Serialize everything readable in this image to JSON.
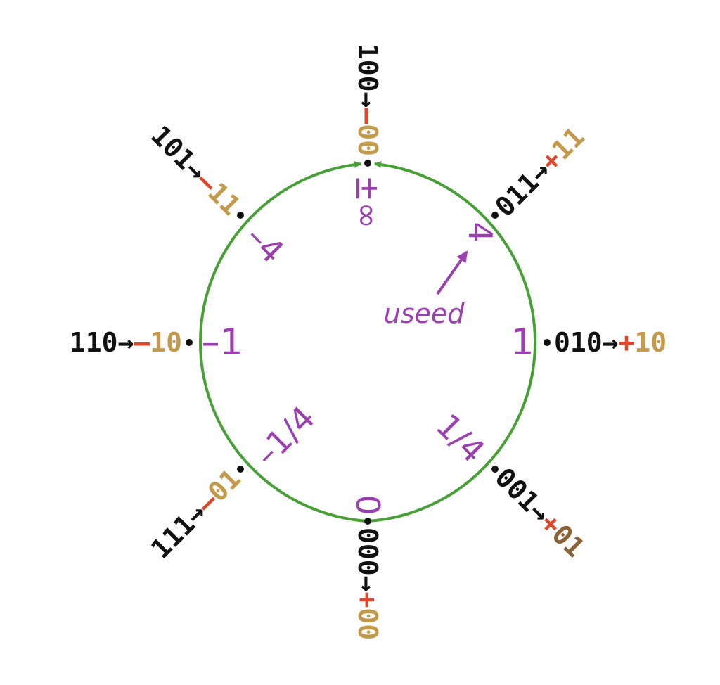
{
  "colors": {
    "ring": "#46a035",
    "bits": "#111111",
    "sign": "#e0462a",
    "regime": "#c49a4a",
    "regime_dark": "#8a6136",
    "value": "#9b3fb0"
  },
  "points": [
    {
      "id": "p000",
      "bits": "000",
      "arrow": "→",
      "sign": "+",
      "regime": "00",
      "value": "0"
    },
    {
      "id": "p001",
      "bits": "001",
      "arrow": "→",
      "sign": "+",
      "regime": "01",
      "value": "1/4"
    },
    {
      "id": "p010",
      "bits": "010",
      "arrow": "→",
      "sign": "+",
      "regime": "10",
      "value": "1"
    },
    {
      "id": "p011",
      "bits": "011",
      "arrow": "→",
      "sign": "+",
      "regime": "11",
      "value": "4"
    },
    {
      "id": "p100",
      "bits": "100",
      "arrow": "→",
      "sign": "–",
      "regime": "00",
      "value": "±∞"
    },
    {
      "id": "p101",
      "bits": "101",
      "arrow": "→",
      "sign": "–",
      "regime": "11",
      "value": "–4"
    },
    {
      "id": "p110",
      "bits": "110",
      "arrow": "→",
      "sign": "–",
      "regime": "10",
      "value": "–1"
    },
    {
      "id": "p111",
      "bits": "111",
      "arrow": "→",
      "sign": "–",
      "regime": "01",
      "value": "–1/4"
    }
  ],
  "annotation": {
    "label": "useed"
  }
}
